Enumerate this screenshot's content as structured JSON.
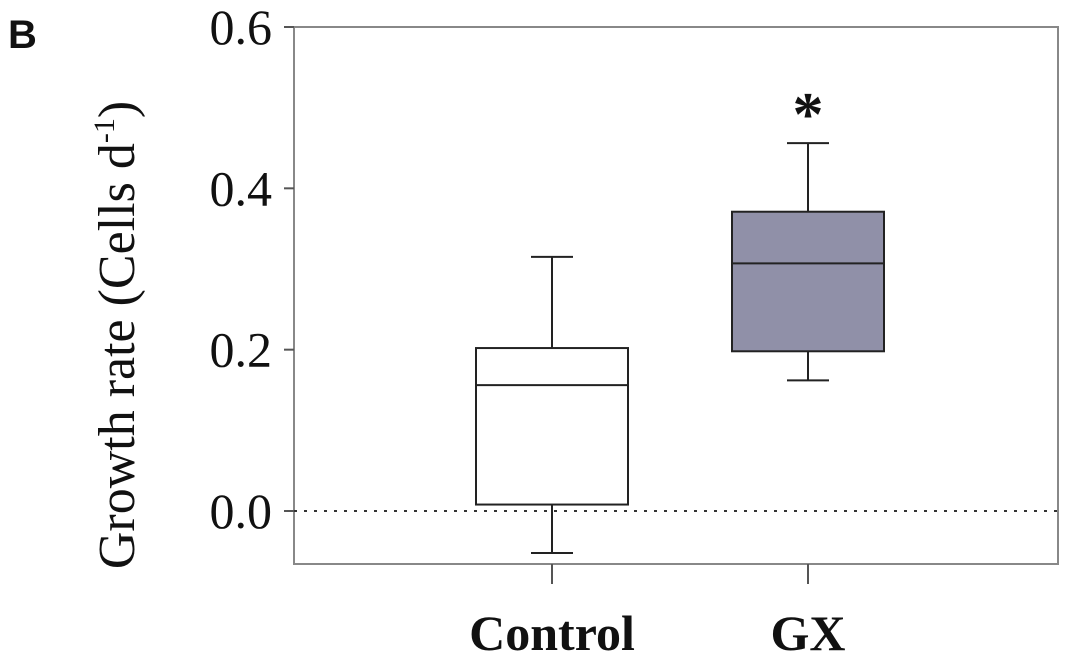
{
  "panel_label": "B",
  "chart_data": {
    "type": "box",
    "title": "",
    "xlabel": "",
    "ylabel": "Growth rate (Cells d",
    "ylabel_sup": "-1",
    "ylabel_close": ")",
    "ylim": [
      -0.07,
      0.61
    ],
    "yticks": [
      0.0,
      0.2,
      0.4,
      0.6
    ],
    "ytick_labels": [
      "0.0",
      "0.2",
      "0.4",
      "0.6"
    ],
    "reference_line": {
      "y": 0.0,
      "style": "dotted"
    },
    "grid": false,
    "legend": "none",
    "categories": [
      "Control",
      "GX"
    ],
    "boxes": [
      {
        "name": "Control",
        "whisker_low": -0.052,
        "q1": 0.008,
        "median": 0.156,
        "q3": 0.202,
        "whisker_high": 0.315,
        "color": "#ffffff",
        "annotation": ""
      },
      {
        "name": "GX",
        "whisker_low": 0.162,
        "q1": 0.198,
        "median": 0.307,
        "q3": 0.371,
        "whisker_high": 0.456,
        "color": "#9090a8",
        "annotation": "*"
      }
    ]
  }
}
